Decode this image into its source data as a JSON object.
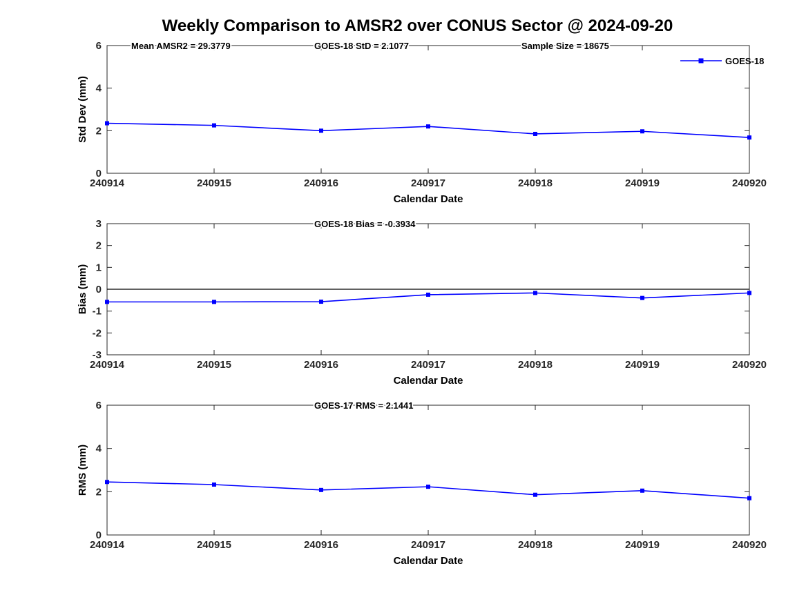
{
  "title": "Weekly Comparison to AMSR2 over CONUS Sector @ 2024-09-20",
  "axis_color": "#262626",
  "line_color": "#0000FF",
  "chart_data": [
    {
      "type": "line",
      "ylabel": "Std Dev (mm)",
      "xlabel": "Calendar Date",
      "ylim": [
        0,
        6
      ],
      "yticks": [
        6,
        4,
        2,
        0
      ],
      "categories": [
        "240914",
        "240915",
        "240916",
        "240917",
        "240918",
        "240919",
        "240920"
      ],
      "series": [
        {
          "name": "GOES-18",
          "color": "#0000FF",
          "marker": "square",
          "values": [
            2.35,
            2.25,
            2.0,
            2.2,
            1.85,
            1.97,
            1.68
          ]
        }
      ],
      "annotations": [
        "Mean AMSR2 = 29.3779",
        "GOES-18 StD = 2.1077",
        "Sample Size = 18675"
      ],
      "legend": {
        "position": "northeast",
        "entries": [
          "GOES-18"
        ]
      },
      "zero_line": false,
      "grid": false
    },
    {
      "type": "line",
      "ylabel": "Bias (mm)",
      "xlabel": "Calendar Date",
      "ylim": [
        -3,
        3
      ],
      "yticks": [
        3,
        2,
        1,
        0,
        -1,
        -2,
        -3
      ],
      "categories": [
        "240914",
        "240915",
        "240916",
        "240917",
        "240918",
        "240919",
        "240920"
      ],
      "series": [
        {
          "name": "GOES-18",
          "color": "#0000FF",
          "marker": "square",
          "values": [
            -0.58,
            -0.58,
            -0.57,
            -0.25,
            -0.17,
            -0.4,
            -0.17
          ]
        }
      ],
      "annotations": [
        "GOES-18 Bias  = -0.3934"
      ],
      "legend": null,
      "zero_line": true,
      "grid": false
    },
    {
      "type": "line",
      "ylabel": "RMS (mm)",
      "xlabel": "Calendar Date",
      "ylim": [
        0,
        6
      ],
      "yticks": [
        6,
        4,
        2,
        0
      ],
      "categories": [
        "240914",
        "240915",
        "240916",
        "240917",
        "240918",
        "240919",
        "240920"
      ],
      "series": [
        {
          "name": "GOES-18",
          "color": "#0000FF",
          "marker": "square",
          "values": [
            2.45,
            2.33,
            2.08,
            2.23,
            1.86,
            2.05,
            1.7
          ]
        }
      ],
      "annotations": [
        "GOES-17 RMS = 2.1441"
      ],
      "legend": null,
      "zero_line": false,
      "grid": false
    }
  ]
}
